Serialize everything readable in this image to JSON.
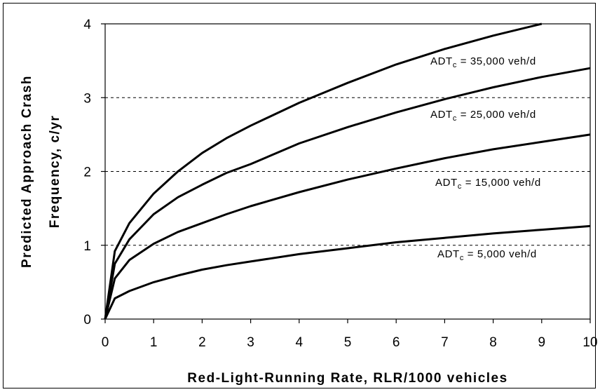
{
  "chart_data": {
    "type": "line",
    "title": "",
    "xlabel": "Red-Light-Running Rate, RLR/1000 vehicles",
    "ylabel": [
      "Predicted Approach Crash",
      "Frequency, c/yr"
    ],
    "xlim": [
      0,
      10
    ],
    "ylim": [
      0,
      4
    ],
    "x_ticks": [
      "0",
      "1",
      "2",
      "3",
      "4",
      "5",
      "6",
      "7",
      "8",
      "9",
      "10"
    ],
    "y_ticks": [
      "0",
      "1",
      "2",
      "3",
      "4"
    ],
    "grid": "dashed horizontal at y = 1, 2, 3",
    "line_color": "#000000",
    "series": [
      {
        "label_main": "ADT",
        "label_sub": "c",
        "label_rest": " = 35,000 veh/d",
        "x": [
          0,
          0.2,
          0.5,
          1,
          1.5,
          2,
          2.5,
          3,
          4,
          5,
          6,
          7,
          8,
          9
        ],
        "y": [
          0,
          0.92,
          1.3,
          1.7,
          2.0,
          2.25,
          2.45,
          2.62,
          2.93,
          3.2,
          3.45,
          3.66,
          3.84,
          4.0
        ]
      },
      {
        "label_main": "ADT",
        "label_sub": "c",
        "label_rest": " = 25,000 veh/d",
        "x": [
          0,
          0.2,
          0.5,
          1,
          1.5,
          2,
          2.5,
          3,
          4,
          5,
          6,
          7,
          8,
          9,
          10
        ],
        "y": [
          0,
          0.75,
          1.08,
          1.42,
          1.65,
          1.82,
          1.98,
          2.1,
          2.38,
          2.6,
          2.8,
          2.98,
          3.14,
          3.28,
          3.4
        ]
      },
      {
        "label_main": "ADT",
        "label_sub": "c",
        "label_rest": " = 15,000 veh/d",
        "x": [
          0,
          0.2,
          0.5,
          1,
          1.5,
          2,
          2.5,
          3,
          4,
          5,
          6,
          7,
          8,
          9,
          10
        ],
        "y": [
          0,
          0.55,
          0.8,
          1.02,
          1.18,
          1.3,
          1.42,
          1.53,
          1.72,
          1.89,
          2.04,
          2.18,
          2.3,
          2.4,
          2.5
        ]
      },
      {
        "label_main": "ADT",
        "label_sub": "c",
        "label_rest": " = 5,000 veh/d",
        "x": [
          0,
          0.2,
          0.5,
          1,
          1.5,
          2,
          2.5,
          3,
          4,
          5,
          6,
          7,
          8,
          9,
          10
        ],
        "y": [
          0,
          0.28,
          0.38,
          0.5,
          0.59,
          0.67,
          0.73,
          0.78,
          0.88,
          0.96,
          1.04,
          1.1,
          1.16,
          1.21,
          1.26
        ]
      }
    ]
  }
}
